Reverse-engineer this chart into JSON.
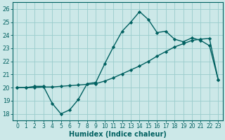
{
  "xlabel": "Humidex (Indice chaleur)",
  "bg_color": "#cce8e8",
  "grid_color": "#99cccc",
  "line_color": "#006060",
  "spine_color": "#006060",
  "xlim": [
    -0.5,
    23.5
  ],
  "ylim": [
    17.5,
    26.5
  ],
  "xticks": [
    0,
    1,
    2,
    3,
    4,
    5,
    6,
    7,
    8,
    9,
    10,
    11,
    12,
    13,
    14,
    15,
    16,
    17,
    18,
    19,
    20,
    21,
    22,
    23
  ],
  "yticks": [
    18,
    19,
    20,
    21,
    22,
    23,
    24,
    25,
    26
  ],
  "line1_x": [
    0,
    1,
    2,
    3,
    4,
    5,
    6,
    7,
    8,
    9,
    10,
    11,
    12,
    13,
    14,
    15,
    16,
    17,
    18,
    19,
    20,
    21,
    22,
    23
  ],
  "line1_y": [
    20.0,
    20.0,
    20.1,
    20.1,
    18.8,
    18.0,
    18.3,
    19.1,
    20.3,
    20.4,
    21.8,
    23.1,
    24.3,
    25.0,
    25.8,
    25.2,
    24.2,
    24.3,
    23.7,
    23.5,
    23.8,
    23.6,
    23.2,
    20.6
  ],
  "line2_x": [
    0,
    1,
    2,
    3,
    4,
    5,
    6,
    7,
    8,
    9,
    10,
    11,
    12,
    13,
    14,
    15,
    16,
    17,
    18,
    19,
    20,
    21,
    22,
    23
  ],
  "line2_y": [
    20.0,
    20.0,
    20.0,
    20.05,
    20.05,
    20.1,
    20.15,
    20.2,
    20.25,
    20.3,
    20.5,
    20.75,
    21.05,
    21.35,
    21.65,
    22.0,
    22.4,
    22.75,
    23.1,
    23.35,
    23.6,
    23.7,
    23.75,
    20.6
  ],
  "xlabel_fontsize": 7,
  "xlabel_fontweight": "bold",
  "tick_labelsize": 5.5,
  "ylabel_tick_labelsize": 6,
  "linewidth": 1.0,
  "markersize": 2.2,
  "gridlinewidth": 0.6
}
